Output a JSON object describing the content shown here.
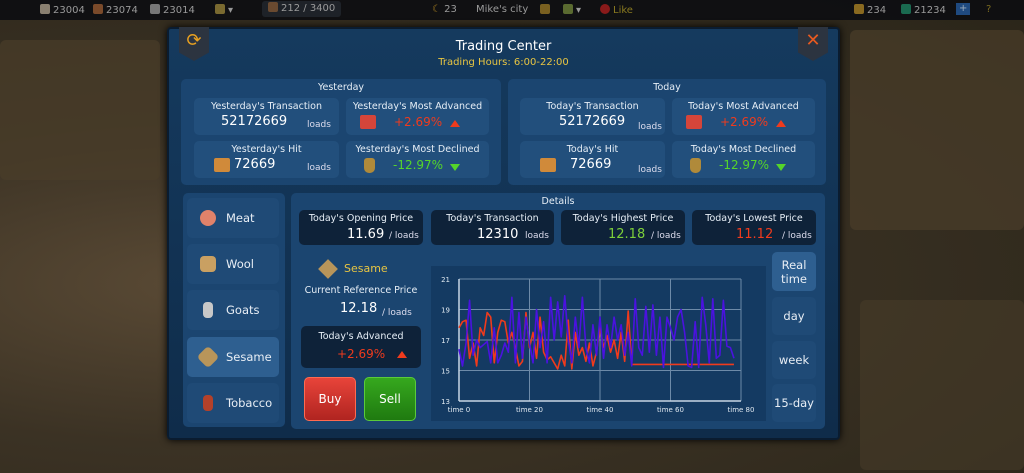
{
  "topbar": {
    "stone": "23004",
    "wood": "23074",
    "iron": "23014",
    "population": "212 / 3400",
    "moon": "23",
    "city": "Mike's city",
    "like": "Like",
    "gold": "234",
    "gems": "21234",
    "plus": "+",
    "help": "?"
  },
  "header": {
    "title": "Trading Center",
    "hours": "Trading Hours: 6:00-22:00"
  },
  "yesterday": {
    "heading": "Yesterday",
    "transaction_label": "Yesterday's Transaction",
    "transaction": "52172669",
    "advanced_label": "Yesterday's Most Advanced",
    "advanced": "+2.69%",
    "hit_label": "Yesterday's Hit",
    "hit": "72669",
    "declined_label": "Yesterday's Most Declined",
    "declined": "-12.97%",
    "unit": "loads"
  },
  "today": {
    "heading": "Today",
    "transaction_label": "Today's Transaction",
    "transaction": "52172669",
    "advanced_label": "Today's Most Advanced",
    "advanced": "+2.69%",
    "hit_label": "Today's Hit",
    "hit": "72669",
    "declined_label": "Today's Most Declined",
    "declined": "-12.97%",
    "unit": "loads"
  },
  "goods": [
    {
      "label": "Meat",
      "color": "#e0826a"
    },
    {
      "label": "Wool",
      "color": "#c9a062"
    },
    {
      "label": "Goats",
      "color": "#c8c8c8"
    },
    {
      "label": "Sesame",
      "color": "#b8955a"
    },
    {
      "label": "Tobacco",
      "color": "#b4412a"
    }
  ],
  "details": {
    "heading": "Details",
    "opening_label": "Today's Opening Price",
    "opening": "11.69",
    "per_unit": "/ loads",
    "transaction_label": "Today's Transaction",
    "transaction": "12310",
    "unit": "loads",
    "highest_label": "Today's Highest Price",
    "highest": "12.18",
    "lowest_label": "Today's Lowest Price",
    "lowest": "11.12",
    "selected": "Sesame",
    "ref_label": "Current Reference Price",
    "ref_price": "12.18",
    "adv_label": "Today's Advanced",
    "adv": "+2.69%",
    "buy": "Buy",
    "sell": "Sell"
  },
  "ranges": [
    "Real time",
    "day",
    "week",
    "15-day"
  ],
  "chart_data": {
    "type": "line",
    "xlim": [
      0,
      80
    ],
    "ylim": [
      13,
      21
    ],
    "grid": true,
    "x_ticks": [
      "time 0",
      "time 20",
      "time 40",
      "time 60",
      "time 80"
    ],
    "y_ticks": [
      "13",
      "15",
      "17",
      "19",
      "21"
    ],
    "series": [
      {
        "color": "#4a12e0",
        "values": [
          16.4,
          15.3,
          16.8,
          19.6,
          16,
          17,
          16.5,
          16.7,
          16.9,
          15.5,
          17.8,
          15.5,
          16,
          16.8,
          16.2,
          19.8,
          15.5,
          18.8,
          15.8,
          18.5,
          16.8,
          15.5,
          19,
          16.5,
          18.2,
          15.5,
          19.8,
          17,
          19.5,
          17.2,
          19.9,
          17,
          15.5,
          18.5,
          16.5,
          19.8,
          16.5,
          15.5,
          18,
          16,
          18.5,
          15.8,
          18,
          16.5,
          18.5,
          17,
          18,
          16,
          17.5,
          15.3,
          19.7,
          16.5,
          16,
          19.2,
          16.2,
          19.3,
          16,
          18.5,
          15.2,
          18.5,
          17.8,
          17,
          18.5,
          19,
          17.5,
          15.3,
          15.2,
          18.2,
          15.2,
          19.8,
          18,
          15.5,
          19.7,
          15.8,
          16,
          19.6,
          16.6,
          16.5,
          15.8
        ]
      },
      {
        "color": "#f03a1c",
        "values": [
          17.8,
          18.2,
          18.3,
          15.8,
          16.8,
          15.3,
          17.8,
          17.3,
          18.8,
          18.5,
          15.5,
          17.5,
          18.3,
          18.2,
          16.8,
          17.5,
          16.5,
          15.3,
          15.6,
          18.8,
          16.5,
          17.5,
          15.8,
          18.5,
          16.2,
          15.7,
          15.9,
          15.5,
          15.1,
          16,
          15.3,
          18.3,
          15.1,
          17.5,
          16,
          16.5,
          15.6,
          16.8,
          15.3,
          16.2,
          17.8,
          16.5,
          17.3,
          16.2,
          17,
          15.8,
          17.5,
          15.6,
          18.9,
          15.4,
          15.4,
          15.4,
          15.4,
          15.4,
          15.4,
          15.4,
          15.4,
          15.4,
          15.4,
          15.4,
          15.4,
          15.4,
          15.4,
          15.4,
          15.4,
          15.4,
          15.4,
          15.4,
          15.4,
          15.4,
          15.4,
          15.4,
          15.4,
          15.4,
          15.4,
          15.4,
          15.4,
          15.4,
          15.4
        ]
      }
    ]
  }
}
